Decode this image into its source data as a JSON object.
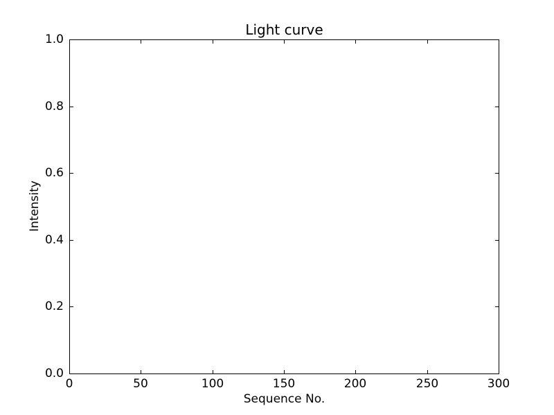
{
  "figure": {
    "background": "#ffffff",
    "axis_color": "#000000",
    "text_color": "#000000"
  },
  "chart_data": {
    "type": "line",
    "title": "Light curve",
    "xlabel": "Sequence No.",
    "ylabel": "Intensity",
    "xlim": [
      0,
      300
    ],
    "ylim": [
      0.0,
      1.0
    ],
    "x_tick_labels": [
      "0",
      "50",
      "100",
      "150",
      "200",
      "250",
      "300"
    ],
    "y_tick_labels": [
      "0.0",
      "0.2",
      "0.4",
      "0.6",
      "0.8",
      "1.0"
    ],
    "series": [],
    "grid": false,
    "legend_position": "none",
    "tick_direction": "in",
    "tick_sides": [
      "top",
      "bottom",
      "left",
      "right"
    ],
    "plot_background": "#ffffff"
  }
}
